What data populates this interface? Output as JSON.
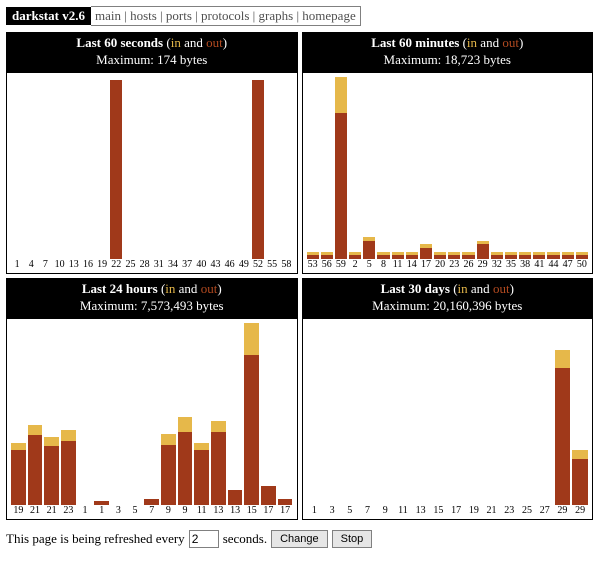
{
  "app_name": "darkstat v2.6",
  "nav": [
    "main",
    "hosts",
    "ports",
    "protocols",
    "graphs",
    "homepage"
  ],
  "colors": {
    "in": "#e6b84a",
    "out": "#a0391a",
    "bg": "#ffffff",
    "head_bg": "#000000",
    "head_fg": "#ffffff"
  },
  "label_every": 3,
  "panels": [
    {
      "title": "Last 60 seconds",
      "maximum": "Maximum: 174 bytes",
      "start_label": 1,
      "bars": [
        {
          "x": 1,
          "in": 0,
          "out": 0
        },
        {
          "x": 4,
          "in": 0,
          "out": 0
        },
        {
          "x": 7,
          "in": 0,
          "out": 0
        },
        {
          "x": 10,
          "in": 0,
          "out": 0
        },
        {
          "x": 13,
          "in": 0,
          "out": 0
        },
        {
          "x": 16,
          "in": 0,
          "out": 0
        },
        {
          "x": 19,
          "in": 0,
          "out": 0
        },
        {
          "x": 22,
          "in": 0,
          "out": 98
        },
        {
          "x": 25,
          "in": 0,
          "out": 0
        },
        {
          "x": 28,
          "in": 0,
          "out": 0
        },
        {
          "x": 31,
          "in": 0,
          "out": 0
        },
        {
          "x": 34,
          "in": 0,
          "out": 0
        },
        {
          "x": 37,
          "in": 0,
          "out": 0
        },
        {
          "x": 40,
          "in": 0,
          "out": 0
        },
        {
          "x": 43,
          "in": 0,
          "out": 0
        },
        {
          "x": 46,
          "in": 0,
          "out": 0
        },
        {
          "x": 49,
          "in": 0,
          "out": 0
        },
        {
          "x": 52,
          "in": 0,
          "out": 98
        },
        {
          "x": 55,
          "in": 0,
          "out": 0
        },
        {
          "x": 58,
          "in": 0,
          "out": 0
        }
      ]
    },
    {
      "title": "Last 60 minutes",
      "maximum": "Maximum: 18,723 bytes",
      "start_label": 53,
      "bars": [
        {
          "x": 53,
          "in": 2,
          "out": 2
        },
        {
          "x": 56,
          "in": 2,
          "out": 2
        },
        {
          "x": 59,
          "in": 20,
          "out": 80
        },
        {
          "x": 2,
          "in": 2,
          "out": 2
        },
        {
          "x": 5,
          "in": 2,
          "out": 10
        },
        {
          "x": 8,
          "in": 2,
          "out": 2
        },
        {
          "x": 11,
          "in": 2,
          "out": 2
        },
        {
          "x": 14,
          "in": 2,
          "out": 2
        },
        {
          "x": 17,
          "in": 2,
          "out": 6
        },
        {
          "x": 20,
          "in": 2,
          "out": 2
        },
        {
          "x": 23,
          "in": 2,
          "out": 2
        },
        {
          "x": 26,
          "in": 2,
          "out": 2
        },
        {
          "x": 29,
          "in": 2,
          "out": 8
        },
        {
          "x": 32,
          "in": 2,
          "out": 2
        },
        {
          "x": 35,
          "in": 2,
          "out": 2
        },
        {
          "x": 38,
          "in": 2,
          "out": 2
        },
        {
          "x": 41,
          "in": 2,
          "out": 2
        },
        {
          "x": 44,
          "in": 2,
          "out": 2
        },
        {
          "x": 47,
          "in": 2,
          "out": 2
        },
        {
          "x": 50,
          "in": 2,
          "out": 2
        }
      ]
    },
    {
      "title": "Last 24 hours",
      "maximum": "Maximum: 7,573,493 bytes",
      "start_label": 19,
      "bars": [
        {
          "x": 19,
          "in": 4,
          "out": 30
        },
        {
          "x": 21,
          "in": 6,
          "out": 38
        },
        {
          "x": 21,
          "in": 5,
          "out": 32
        },
        {
          "x": 23,
          "in": 6,
          "out": 35
        },
        {
          "x": 1,
          "in": 0,
          "out": 0
        },
        {
          "x": 1,
          "in": 0,
          "out": 2
        },
        {
          "x": 3,
          "in": 0,
          "out": 0
        },
        {
          "x": 5,
          "in": 0,
          "out": 0
        },
        {
          "x": 7,
          "in": 0,
          "out": 3
        },
        {
          "x": 9,
          "in": 6,
          "out": 33
        },
        {
          "x": 9,
          "in": 8,
          "out": 40
        },
        {
          "x": 11,
          "in": 4,
          "out": 30
        },
        {
          "x": 13,
          "in": 6,
          "out": 40
        },
        {
          "x": 13,
          "in": 0,
          "out": 8
        },
        {
          "x": 15,
          "in": 18,
          "out": 82
        },
        {
          "x": 17,
          "in": 0,
          "out": 10
        },
        {
          "x": 17,
          "in": 0,
          "out": 3
        }
      ]
    },
    {
      "title": "Last 30 days",
      "maximum": "Maximum: 20,160,396 bytes",
      "start_label": 1,
      "bars": [
        {
          "x": 1,
          "in": 0,
          "out": 0
        },
        {
          "x": 3,
          "in": 0,
          "out": 0
        },
        {
          "x": 5,
          "in": 0,
          "out": 0
        },
        {
          "x": 7,
          "in": 0,
          "out": 0
        },
        {
          "x": 9,
          "in": 0,
          "out": 0
        },
        {
          "x": 11,
          "in": 0,
          "out": 0
        },
        {
          "x": 13,
          "in": 0,
          "out": 0
        },
        {
          "x": 15,
          "in": 0,
          "out": 0
        },
        {
          "x": 17,
          "in": 0,
          "out": 0
        },
        {
          "x": 19,
          "in": 0,
          "out": 0
        },
        {
          "x": 21,
          "in": 0,
          "out": 0
        },
        {
          "x": 23,
          "in": 0,
          "out": 0
        },
        {
          "x": 25,
          "in": 0,
          "out": 0
        },
        {
          "x": 27,
          "in": 0,
          "out": 0
        },
        {
          "x": 29,
          "in": 10,
          "out": 75
        },
        {
          "x": 29,
          "in": 5,
          "out": 25
        }
      ]
    }
  ],
  "footer": {
    "prefix": "This page is being refreshed every",
    "value": "2",
    "suffix": "seconds.",
    "change": "Change",
    "stop": "Stop"
  }
}
